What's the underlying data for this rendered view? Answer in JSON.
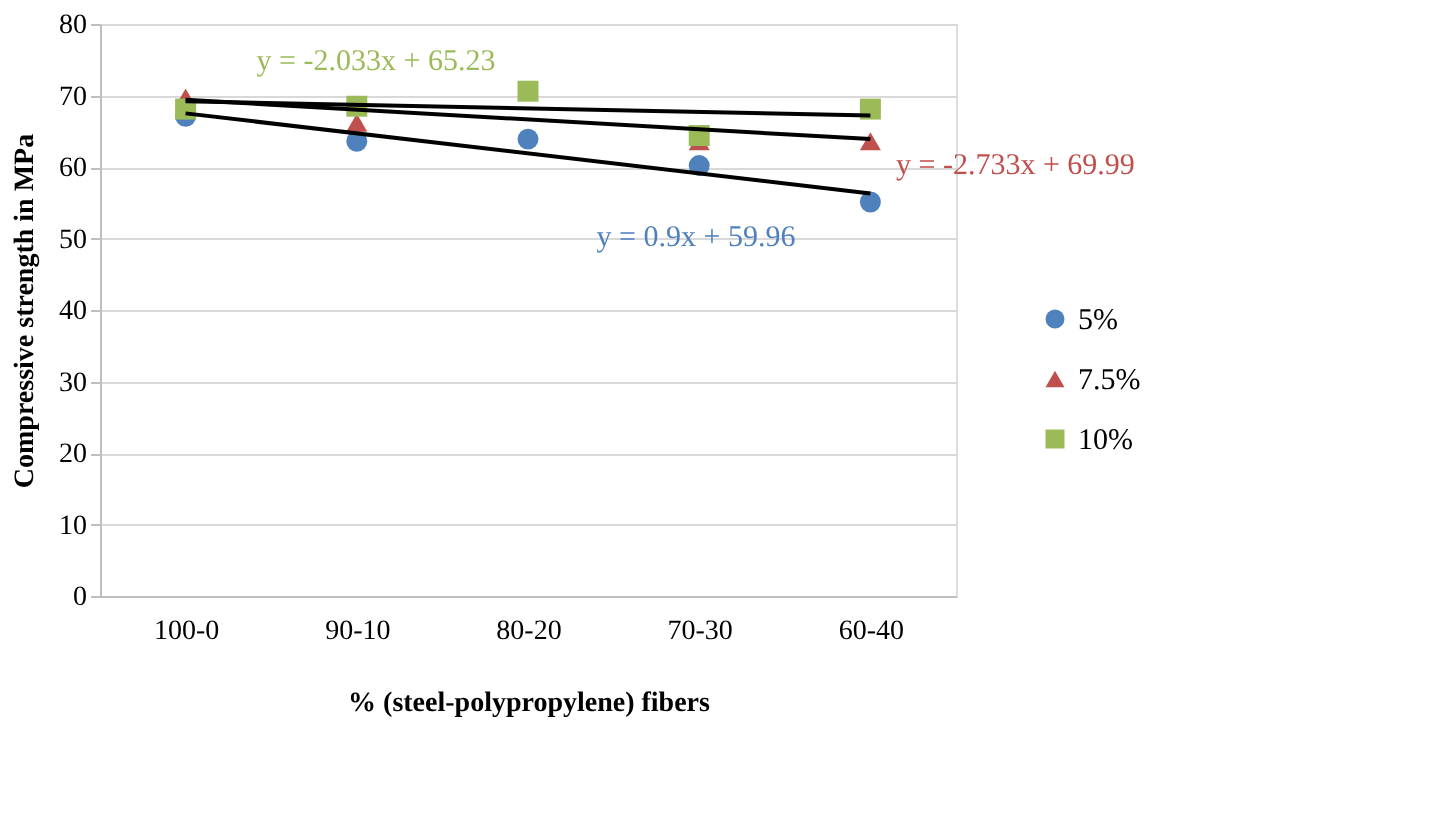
{
  "chart_data": {
    "type": "scatter",
    "xlabel": "% (steel-polypropylene) fibers",
    "ylabel": "Compressive strength in MPa",
    "categories": [
      "100-0",
      "90-10",
      "80-20",
      "70-30",
      "60-40"
    ],
    "series": [
      {
        "name": "5%",
        "color": "#4f81bd",
        "marker": "circle",
        "values": [
          67.1,
          63.6,
          63.9,
          60.2,
          55.1
        ]
      },
      {
        "name": "7.5%",
        "color": "#c0504d",
        "marker": "triangle",
        "values": [
          69.7,
          66.2,
          null,
          63.6,
          63.6
        ]
      },
      {
        "name": "10%",
        "color": "#9bbb59",
        "marker": "square",
        "values": [
          68.1,
          68.5,
          70.6,
          64.4,
          68.1
        ]
      },
      {
        "type": "line",
        "color": "#000000",
        "marker": "none",
        "x": [
          "100-0",
          "60-40"
        ],
        "values": [
          67.5,
          56.3
        ]
      },
      {
        "type": "line",
        "color": "#000000",
        "marker": "none",
        "x": [
          "100-0",
          "60-40"
        ],
        "values": [
          69.4,
          63.9
        ]
      },
      {
        "type": "line",
        "color": "#000000",
        "marker": "none",
        "x": [
          "100-0",
          "60-40"
        ],
        "values": [
          69.2,
          67.2
        ]
      }
    ],
    "annotations": [
      "y = 0.9x + 59.96",
      "y = -2.733x + 69.99",
      "y = -2.033x + 65.23"
    ],
    "ylim": [
      0,
      80
    ],
    "yticks": [
      0,
      10,
      20,
      30,
      40,
      50,
      60,
      70,
      80
    ],
    "grid": "y",
    "legend": "right"
  }
}
